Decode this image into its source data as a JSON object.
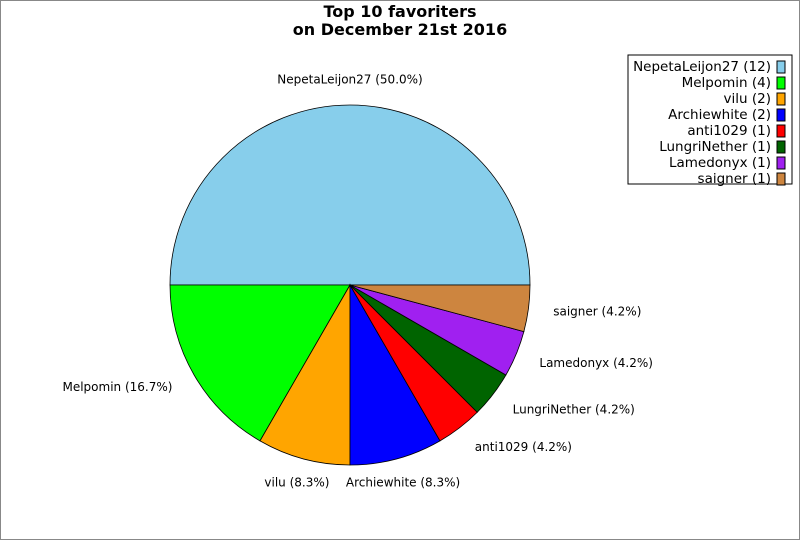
{
  "chart_data": {
    "type": "pie",
    "title": [
      "Top 10 favoriters",
      "on December 21st 2016"
    ],
    "start_angle_deg": 0,
    "direction": "counterclockwise",
    "legend_placement": "top-right",
    "slices": [
      {
        "name": "NepetaLeijon27",
        "value": 12,
        "percent": "50.0%",
        "color": "#87CEEB"
      },
      {
        "name": "Melpomin",
        "value": 4,
        "percent": "16.7%",
        "color": "#00FF00"
      },
      {
        "name": "vilu",
        "value": 2,
        "percent": "8.3%",
        "color": "#FFA500"
      },
      {
        "name": "Archiewhite",
        "value": 2,
        "percent": "8.3%",
        "color": "#0000FF"
      },
      {
        "name": "anti1029",
        "value": 1,
        "percent": "4.2%",
        "color": "#FF0000"
      },
      {
        "name": "LungriNether",
        "value": 1,
        "percent": "4.2%",
        "color": "#006400"
      },
      {
        "name": "Lamedonyx",
        "value": 1,
        "percent": "4.2%",
        "color": "#A020F0"
      },
      {
        "name": "saigner",
        "value": 1,
        "percent": "4.2%",
        "color": "#CD853F"
      }
    ]
  }
}
